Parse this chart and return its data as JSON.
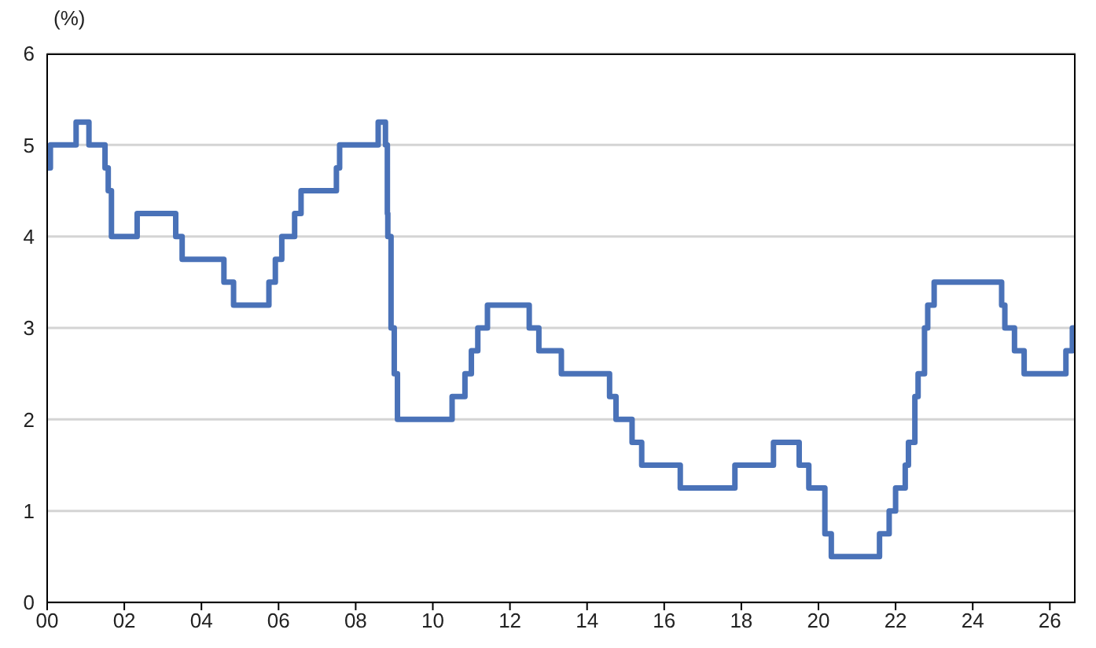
{
  "chart_data": {
    "type": "step",
    "ylabel": "(%)",
    "x": [
      "2000-01",
      "2000-02",
      "2000-10",
      "2001-02",
      "2001-07",
      "2001-08",
      "2001-09",
      "2002-05",
      "2003-05",
      "2003-07",
      "2004-08",
      "2004-11",
      "2005-10",
      "2005-12",
      "2006-02",
      "2006-06",
      "2006-08",
      "2007-07",
      "2007-08",
      "2008-08",
      "2008-10-09",
      "2008-10-27",
      "2008-11",
      "2008-12",
      "2009-01",
      "2009-02",
      "2010-07",
      "2010-11",
      "2011-01",
      "2011-03",
      "2011-06",
      "2012-07",
      "2012-10",
      "2013-05",
      "2014-08",
      "2014-10",
      "2015-03",
      "2015-06",
      "2016-06",
      "2017-11",
      "2018-11",
      "2019-07",
      "2019-10",
      "2020-03",
      "2020-05",
      "2021-08",
      "2021-11",
      "2022-01",
      "2022-04",
      "2022-05",
      "2022-07",
      "2022-08",
      "2022-10",
      "2022-11",
      "2023-01",
      "2024-10",
      "2024-11",
      "2025-02",
      "2025-05",
      "2026-06",
      "2026-08",
      "2026-09"
    ],
    "series": [
      {
        "color": "#4a72b8",
        "values": [
          4.75,
          5,
          5.25,
          5,
          4.75,
          4.5,
          4,
          4.25,
          4,
          3.75,
          3.5,
          3.25,
          3.5,
          3.75,
          4,
          4.25,
          4.5,
          4.75,
          5,
          5.25,
          5,
          4.25,
          4,
          3,
          2.5,
          2,
          2.25,
          2.5,
          2.75,
          3,
          3.25,
          3,
          2.75,
          2.5,
          2.25,
          2,
          1.75,
          1.5,
          1.25,
          1.5,
          1.75,
          1.5,
          1.25,
          0.75,
          0.5,
          0.75,
          1,
          1.25,
          1.5,
          1.75,
          2.25,
          2.5,
          3,
          3.25,
          3.5,
          3.25,
          3,
          2.75,
          2.5,
          2.75,
          3,
          3
        ]
      }
    ],
    "xlim": [
      "2000-01",
      "2026-09"
    ],
    "xticks": [
      {
        "value": "2000",
        "label": "00"
      },
      {
        "value": "2002",
        "label": "02"
      },
      {
        "value": "2004",
        "label": "04"
      },
      {
        "value": "2006",
        "label": "06"
      },
      {
        "value": "2008",
        "label": "08"
      },
      {
        "value": "2010",
        "label": "10"
      },
      {
        "value": "2012",
        "label": "12"
      },
      {
        "value": "2014",
        "label": "14"
      },
      {
        "value": "2016",
        "label": "16"
      },
      {
        "value": "2018",
        "label": "18"
      },
      {
        "value": "2020",
        "label": "20"
      },
      {
        "value": "2022",
        "label": "22"
      },
      {
        "value": "2024",
        "label": "24"
      },
      {
        "value": "2026",
        "label": "26"
      }
    ],
    "ylim": [
      0,
      6
    ],
    "yticks": [
      0,
      1,
      2,
      3,
      4,
      5,
      6
    ],
    "grid": "y",
    "marker": "none",
    "line_style": "solid",
    "legend": false
  }
}
